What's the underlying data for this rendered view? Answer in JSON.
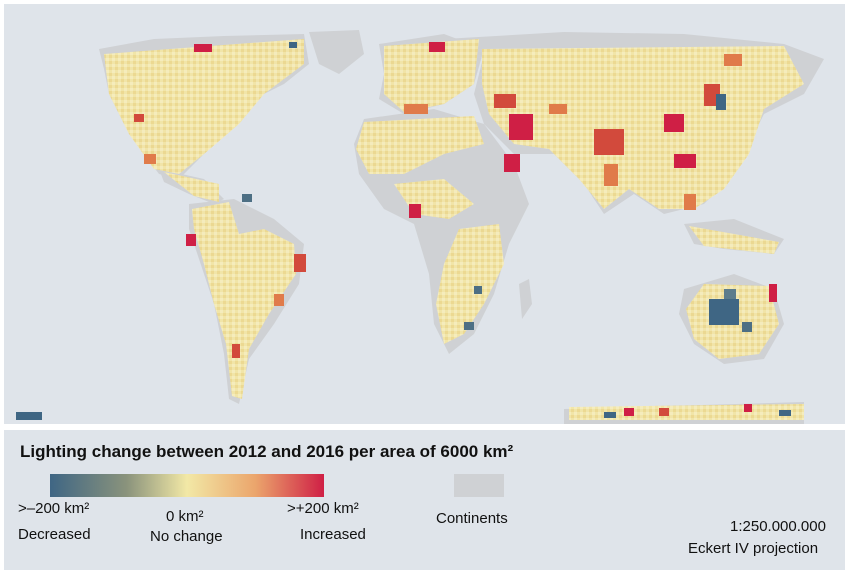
{
  "legend": {
    "title": "Lighting change between 2012 and 2016 per area of 6000 km²",
    "decrease_value": ">–200 km²",
    "decrease_label": "Decreased",
    "zero_value": "0 km²",
    "zero_label": "No change",
    "increase_value": ">+200 km²",
    "increase_label": "Increased",
    "continents_label": "Continents",
    "scale": "1:250.000.000",
    "projection": "Eckert IV projection"
  },
  "colors": {
    "ocean": "#dfe4ea",
    "continents": "#cfd1d4",
    "decreased": "#3f6684",
    "no_change": "#f2e8a6",
    "increased": "#cf1f45"
  },
  "map": {
    "decrease_hotspots": [
      "Australia",
      "Southern Africa",
      "North America (scattered)"
    ],
    "increase_hotspots": [
      "Middle East",
      "India",
      "China",
      "Northern Africa coast",
      "Eastern South America"
    ]
  }
}
